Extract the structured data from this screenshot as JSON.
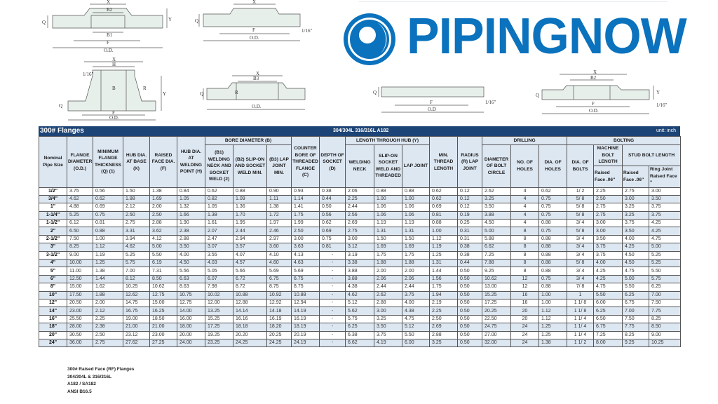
{
  "logo": {
    "text": "PIPINGNOW",
    "color": "#0b72bd"
  },
  "drawings": [
    {
      "name": "slip-on-flange-drawing",
      "labels": [
        "X",
        "B2",
        "B1",
        "F",
        "O.D.",
        "Q",
        "Y"
      ]
    },
    {
      "name": "blind-flange-drawing-top",
      "labels": [
        "X",
        "F",
        "O.D.",
        "Q",
        "1/16\""
      ]
    },
    {
      "name": "weld-neck-flange-drawing",
      "labels": [
        "X",
        "H",
        "1/16\"",
        "B",
        "R",
        "F",
        "O.D.",
        "Q",
        "Y"
      ]
    },
    {
      "name": "lap-joint-flange-drawing",
      "labels": [
        "X",
        "B3",
        "R",
        "O.D.",
        "Q"
      ]
    },
    {
      "name": "blind-flange-drawing",
      "labels": [
        "F",
        "O.D",
        "Q",
        "1/16\""
      ]
    },
    {
      "name": "socket-weld-flange-drawing",
      "labels": [
        "X",
        "B2",
        "F",
        "O.D.",
        "Q",
        "Y",
        "1/16\""
      ]
    }
  ],
  "table": {
    "title": "300# Flanges",
    "material": "304/304L 316/316L A182",
    "unit": "unit: inch",
    "header_color": "#1d4476",
    "groups": {
      "bore": "BORE DIAMETER (B)",
      "length": "LENGTH THROUGH HUB (Y)",
      "drilling": "DRILLING",
      "bolting": "BOLTING"
    },
    "columns": {
      "nominal": "Nominal Pipe Size",
      "od": "FLANGE DIAMETER (O.D.)",
      "q": "MINIMUM FLANGE THICKNESS (Q) (1)",
      "x": "HUB DIA. AT BASE (X)",
      "f": "RAISED FACE DIA. (F)",
      "h": "HUB DIA. AT WELDING POINT (H)",
      "b1": "(B1) WELDING NECK AND SOCKET WELD (2)",
      "b2": "(B2) SLIP-ON AND SOCKET WELD MIN.",
      "b3": "(B3) LAP JOINT MIN.",
      "c": "COUNTER BORE OF THREADED FLANGE (C)",
      "d": "DEPTH OF SOCKET (D)",
      "wn": "WELDING NECK",
      "so": "SLIP-ON SOCKET WELD AND THREADED",
      "lj": "LAP JOINT",
      "thread": "MIN. THREAD LENGTH",
      "r": "RADIUS (R) LAP JOINT",
      "bc": "DIAMETER OF BOLT CIRCLE",
      "holes": "NO. OF HOLES",
      "dholes": "DIA. OF HOLES",
      "dbolts": "DIA. OF BOLTS",
      "machine": "MACHINE BOLT LENGTH",
      "stud": "STUD BOLT LENGTH",
      "rf1": "Raised Face .06\"",
      "rf2": "Raised Face .06\"",
      "rj": "Ring Joint Raised Face \""
    },
    "rows": [
      [
        "1/2\"",
        "3.75",
        "0.56",
        "1.50",
        "1.38",
        "0.84",
        "0.62",
        "0.88",
        "0.90",
        "0.93",
        "0.38",
        "2.06",
        "0.88",
        "0.88",
        "0.62",
        "0.12",
        "2.62",
        "4",
        "0.62",
        "1/ 2",
        "2.25",
        "2.75",
        "3.00"
      ],
      [
        "3/4\"",
        "4.62",
        "0.62",
        "1.88",
        "1.69",
        "1.05",
        "0.82",
        "1.09",
        "1.11",
        "1.14",
        "0.44",
        "2.25",
        "1.00",
        "1.00",
        "0.62",
        "0.12",
        "3.25",
        "4",
        "0.75",
        "5/ 8",
        "2.50",
        "3.00",
        "3.50"
      ],
      [
        "1\"",
        "4.88",
        "0.69",
        "2.12",
        "2.00",
        "1.32",
        "1.05",
        "1.36",
        "1.38",
        "1.41",
        "0.50",
        "2.44",
        "1.06",
        "1.06",
        "0.69",
        "0.12",
        "3.50",
        "4",
        "0.75",
        "5/ 8",
        "2.75",
        "3.25",
        "3.75"
      ],
      [
        "1-1/4\"",
        "5.25",
        "0.75",
        "2.50",
        "2.50",
        "1.66",
        "1.38",
        "1.70",
        "1.72",
        "1.75",
        "0.56",
        "2.56",
        "1.06",
        "1.06",
        "0.81",
        "0.19",
        "3.88",
        "4",
        "0.75",
        "5/ 8",
        "2.75",
        "3.25",
        "3.75"
      ],
      [
        "1-1/2\"",
        "6.12",
        "0.81",
        "2.75",
        "2.88",
        "1.90",
        "1.61",
        "1.95",
        "1.97",
        "1.99",
        "0.62",
        "2.69",
        "1.19",
        "1.19",
        "0.88",
        "0.25",
        "4.50",
        "4",
        "0.88",
        "3/ 4",
        "3.00",
        "3.75",
        "4.25"
      ],
      [
        "2\"",
        "6.50",
        "0.88",
        "3.31",
        "3.62",
        "2.38",
        "2.07",
        "2.44",
        "2.46",
        "2.50",
        "0.69",
        "2.75",
        "1.31",
        "1.31",
        "1.00",
        "0.31",
        "5.00",
        "8",
        "0.75",
        "5/ 8",
        "3.00",
        "3.50",
        "4.25"
      ],
      [
        "2-1/2\"",
        "7.50",
        "1.00",
        "3.94",
        "4.12",
        "2.88",
        "2.47",
        "2.94",
        "2.97",
        "3.00",
        "0.75",
        "3.00",
        "1.50",
        "1.50",
        "1.12",
        "0.31",
        "5.88",
        "8",
        "0.88",
        "3/ 4",
        "3.50",
        "4.00",
        "4.75"
      ],
      [
        "3\"",
        "8.25",
        "1.12",
        "4.62",
        "5.00",
        "3.50",
        "3.07",
        "3.57",
        "3.60",
        "3.63",
        "0.81",
        "3.12",
        "1.69",
        "1.69",
        "1.19",
        "0.38",
        "6.62",
        "8",
        "0.88",
        "3/ 4",
        "3.75",
        "4.25",
        "5.00"
      ],
      [
        "3-1/2\"",
        "9.00",
        "1.19",
        "5.25",
        "5.50",
        "4.00",
        "3.55",
        "4.07",
        "4.10",
        "4.13",
        "-",
        "3.19",
        "1.75",
        "1.75",
        "1.25",
        "0.38",
        "7.25",
        "8",
        "0.88",
        "3/ 4",
        "3.75",
        "4.50",
        "5.25"
      ],
      [
        "4\"",
        "10.00",
        "1.25",
        "5.75",
        "6.19",
        "4.50",
        "4.03",
        "4.57",
        "4.60",
        "4.63",
        "-",
        "3.38",
        "1.88",
        "1.88",
        "1.31",
        "0.44",
        "7.88",
        "8",
        "0.88",
        "5/ 8",
        "4.00",
        "4.50",
        "5.25"
      ],
      [
        "5\"",
        "11.00",
        "1.38",
        "7.00",
        "7.31",
        "5.56",
        "5.05",
        "5.66",
        "5.69",
        "5.69",
        "-",
        "3.88",
        "2.00",
        "2.00",
        "1.44",
        "0.50",
        "9.25",
        "8",
        "0.88",
        "3/ 4",
        "4.25",
        "4.75",
        "5.50"
      ],
      [
        "6\"",
        "12.50",
        "1.44",
        "8.12",
        "8.50",
        "6.63",
        "6.07",
        "6.72",
        "6.75",
        "6.75",
        "-",
        "3.88",
        "2.06",
        "2.06",
        "1.56",
        "0.50",
        "10.62",
        "12",
        "0.75",
        "3/ 4",
        "4.25",
        "5.00",
        "5.75"
      ],
      [
        "8\"",
        "15.00",
        "1.62",
        "10.25",
        "10.62",
        "8.63",
        "7.98",
        "8.72",
        "8.75",
        "8.75",
        "-",
        "4.38",
        "2.44",
        "2.44",
        "1.75",
        "0.50",
        "13.00",
        "12",
        "0.88",
        "7/ 8",
        "4.75",
        "5.50",
        "6.25"
      ],
      [
        "10\"",
        "17.50",
        "1.88",
        "12.62",
        "12.75",
        "10.75",
        "10.02",
        "10.88",
        "10.92",
        "10.88",
        "-",
        "4.62",
        "2.62",
        "3.75",
        "1.94",
        "0.50",
        "15.25",
        "16",
        "1.00",
        "1",
        "5.50",
        "6.25",
        "7.00"
      ],
      [
        "12\"",
        "20.50",
        "2.00",
        "14.75",
        "15.00",
        "12.75",
        "12.00",
        "12.88",
        "12.92",
        "12.94",
        "-",
        "5.12",
        "2.88",
        "4.00",
        "2.19",
        "0.50",
        "17.25",
        "16",
        "1.00",
        "1 1/ 8",
        "6.00",
        "6.75",
        "7.50"
      ],
      [
        "14\"",
        "23.00",
        "2.12",
        "16.75",
        "16.25",
        "14.00",
        "13.25",
        "14.14",
        "14.18",
        "14.19",
        "-",
        "5.62",
        "3.00",
        "4.38",
        "2.25",
        "0.50",
        "20.25",
        "20",
        "1.12",
        "1 1/ 8",
        "6.25",
        "7.00",
        "7.75"
      ],
      [
        "16\"",
        "25.50",
        "2.25",
        "19.00",
        "18.50",
        "16.00",
        "15.25",
        "16.16",
        "16.19",
        "16.19",
        "-",
        "5.75",
        "3.25",
        "4.75",
        "2.50",
        "0.50",
        "22.50",
        "20",
        "1.12",
        "1 1/ 4",
        "6.50",
        "7.50",
        "8.25"
      ],
      [
        "18\"",
        "28.00",
        "2.38",
        "21.00",
        "21.00",
        "18.00",
        "17.25",
        "18.18",
        "18.20",
        "18.19",
        "-",
        "6.25",
        "3.50",
        "5.12",
        "2.69",
        "0.50",
        "24.75",
        "24",
        "1.25",
        "1 1/ 4",
        "6.75",
        "7.75",
        "8.50"
      ],
      [
        "20\"",
        "30.50",
        "2.50",
        "23.12",
        "23.00",
        "20.00",
        "19.25",
        "20.20",
        "20.25",
        "20.19",
        "-",
        "6.38",
        "3.75",
        "5.50",
        "2.88",
        "0.50",
        "27.00",
        "24",
        "1.25",
        "1 1/ 4",
        "7.25",
        "8.25",
        "9.00"
      ],
      [
        "24\"",
        "36.00",
        "2.75",
        "27.62",
        "27.25",
        "24.00",
        "23.25",
        "24.25",
        "24.25",
        "24.19",
        "-",
        "6.62",
        "4.19",
        "6.00",
        "3.25",
        "0.50",
        "32.00",
        "24",
        "1.38",
        "1 1/ 2",
        "8.00",
        "9.25",
        "10.25"
      ]
    ]
  },
  "notes": [
    "300# Raised Face (RF) Flanges",
    "304/304L & 316/316L",
    "A182 / SA182",
    "ANSI B16.5"
  ]
}
